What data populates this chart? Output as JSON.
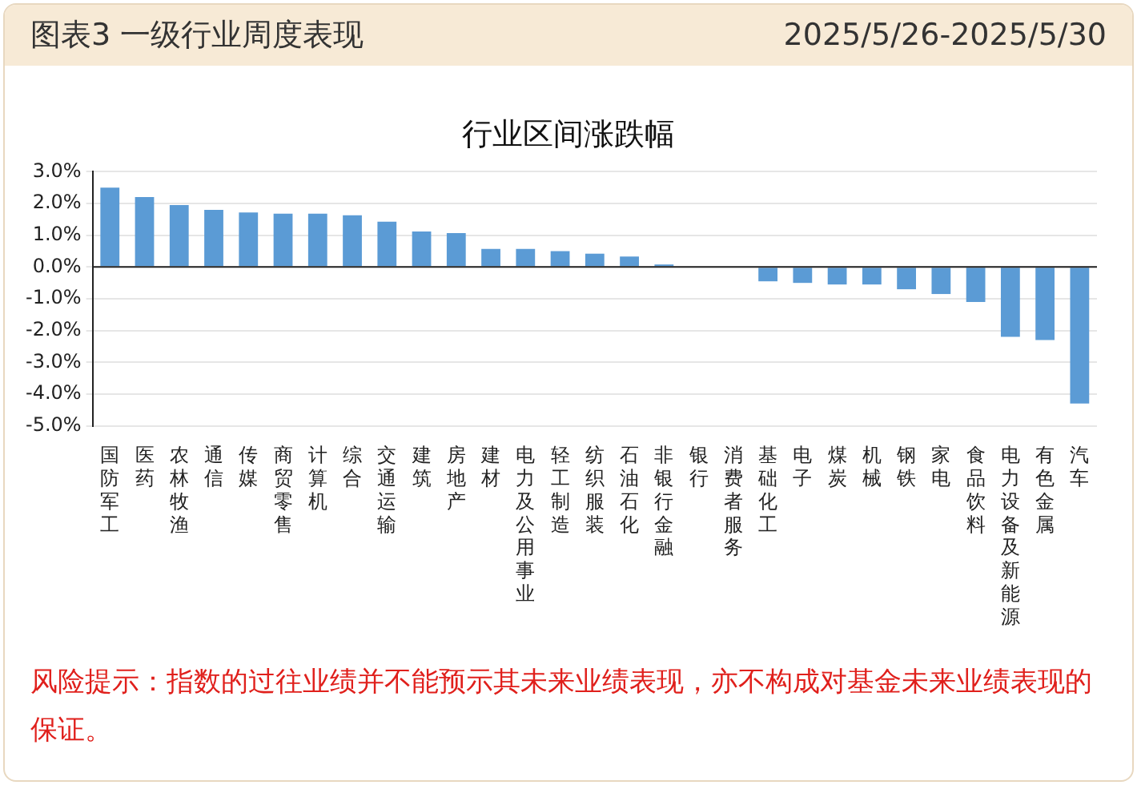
{
  "chart_data": {
    "type": "bar",
    "title": "行业区间涨跌幅",
    "categories": [
      "国防军工",
      "医药",
      "农林牧渔",
      "通信",
      "传媒",
      "商贸零售",
      "计算机",
      "综合",
      "交通运输",
      "建筑",
      "房地产",
      "建材",
      "电力及公用事业",
      "轻工制造",
      "纺织服装",
      "石油石化",
      "非银行金融",
      "银行",
      "消费者服务",
      "基础化工",
      "电子",
      "煤炭",
      "机械",
      "钢铁",
      "家电",
      "食品饮料",
      "电力设备及新能源",
      "有色金属",
      "汽车"
    ],
    "values": [
      2.5,
      2.2,
      1.95,
      1.8,
      1.72,
      1.68,
      1.68,
      1.63,
      1.43,
      1.12,
      1.07,
      0.57,
      0.57,
      0.5,
      0.42,
      0.33,
      0.08,
      null,
      null,
      -0.45,
      -0.5,
      -0.55,
      -0.55,
      -0.7,
      -0.85,
      -1.1,
      -2.2,
      -2.3,
      -4.3
    ],
    "color": "#5b9bd5",
    "ylim": [
      -5,
      3
    ],
    "yticks": [
      {
        "value": -5,
        "label": "-5.0%"
      },
      {
        "value": -4,
        "label": "-4.0%"
      },
      {
        "value": -3,
        "label": "-3.0%"
      },
      {
        "value": -2,
        "label": "-2.0%"
      },
      {
        "value": -1,
        "label": "-1.0%"
      },
      {
        "value": 0,
        "label": "0.0%"
      },
      {
        "value": 1,
        "label": "1.0%"
      },
      {
        "value": 2,
        "label": "2.0%"
      },
      {
        "value": 3,
        "label": "3.0%"
      }
    ],
    "grid": "y",
    "legend": false,
    "annotations": [
      "图表3  一级行业周度表现",
      "2025/5/26-2025/5/30",
      "风险提示：指数的过往业绩并不能预示其未来业绩表现，亦不构成对基金未来业绩表现的保证。"
    ]
  }
}
